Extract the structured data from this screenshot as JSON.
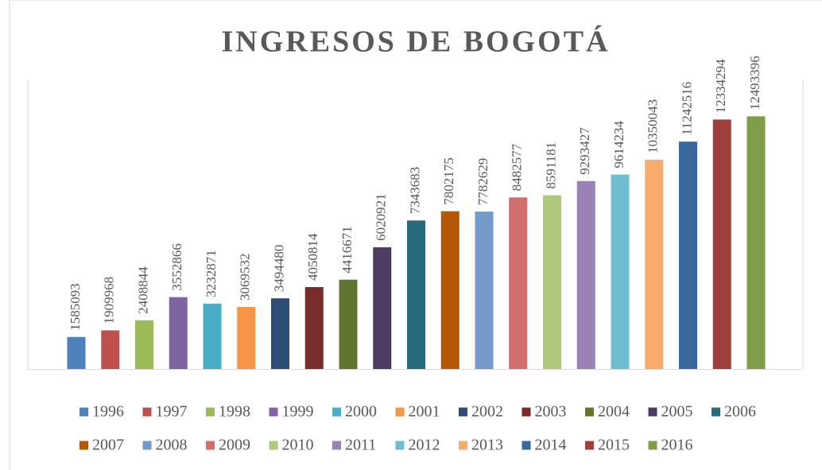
{
  "chart_data": {
    "type": "bar",
    "title": "INGRESOS DE BOGOTÁ",
    "ylim": [
      0,
      14000000
    ],
    "series": [
      {
        "name": "1996",
        "color": "#4f81bd",
        "values": [
          1585093
        ]
      },
      {
        "name": "1997",
        "color": "#c0504d",
        "values": [
          1909968
        ]
      },
      {
        "name": "1998",
        "color": "#9bbb59",
        "values": [
          2408844
        ]
      },
      {
        "name": "1999",
        "color": "#8064a2",
        "values": [
          3552866
        ]
      },
      {
        "name": "2000",
        "color": "#4bacc6",
        "values": [
          3232871
        ]
      },
      {
        "name": "2001",
        "color": "#f79646",
        "values": [
          3069532
        ]
      },
      {
        "name": "2002",
        "color": "#2c4d75",
        "values": [
          3494480
        ]
      },
      {
        "name": "2003",
        "color": "#772c2a",
        "values": [
          4050814
        ]
      },
      {
        "name": "2004",
        "color": "#5f7530",
        "values": [
          4416671
        ]
      },
      {
        "name": "2005",
        "color": "#4d3b62",
        "values": [
          6020921
        ]
      },
      {
        "name": "2006",
        "color": "#276a7c",
        "values": [
          7343683
        ]
      },
      {
        "name": "2007",
        "color": "#b65708",
        "values": [
          7802175
        ]
      },
      {
        "name": "2008",
        "color": "#729aca",
        "values": [
          7782629
        ]
      },
      {
        "name": "2009",
        "color": "#d06f6c",
        "values": [
          8482577
        ]
      },
      {
        "name": "2010",
        "color": "#afc97a",
        "values": [
          8591181
        ]
      },
      {
        "name": "2011",
        "color": "#9983b5",
        "values": [
          9293427
        ]
      },
      {
        "name": "2012",
        "color": "#6fbdd1",
        "values": [
          9614234
        ]
      },
      {
        "name": "2013",
        "color": "#f9ab6b",
        "values": [
          10350043
        ]
      },
      {
        "name": "2014",
        "color": "#3a679c",
        "values": [
          11242516
        ]
      },
      {
        "name": "2015",
        "color": "#9f3f3c",
        "values": [
          12334294
        ]
      },
      {
        "name": "2016",
        "color": "#7f9c47",
        "values": [
          12493396
        ]
      }
    ]
  }
}
